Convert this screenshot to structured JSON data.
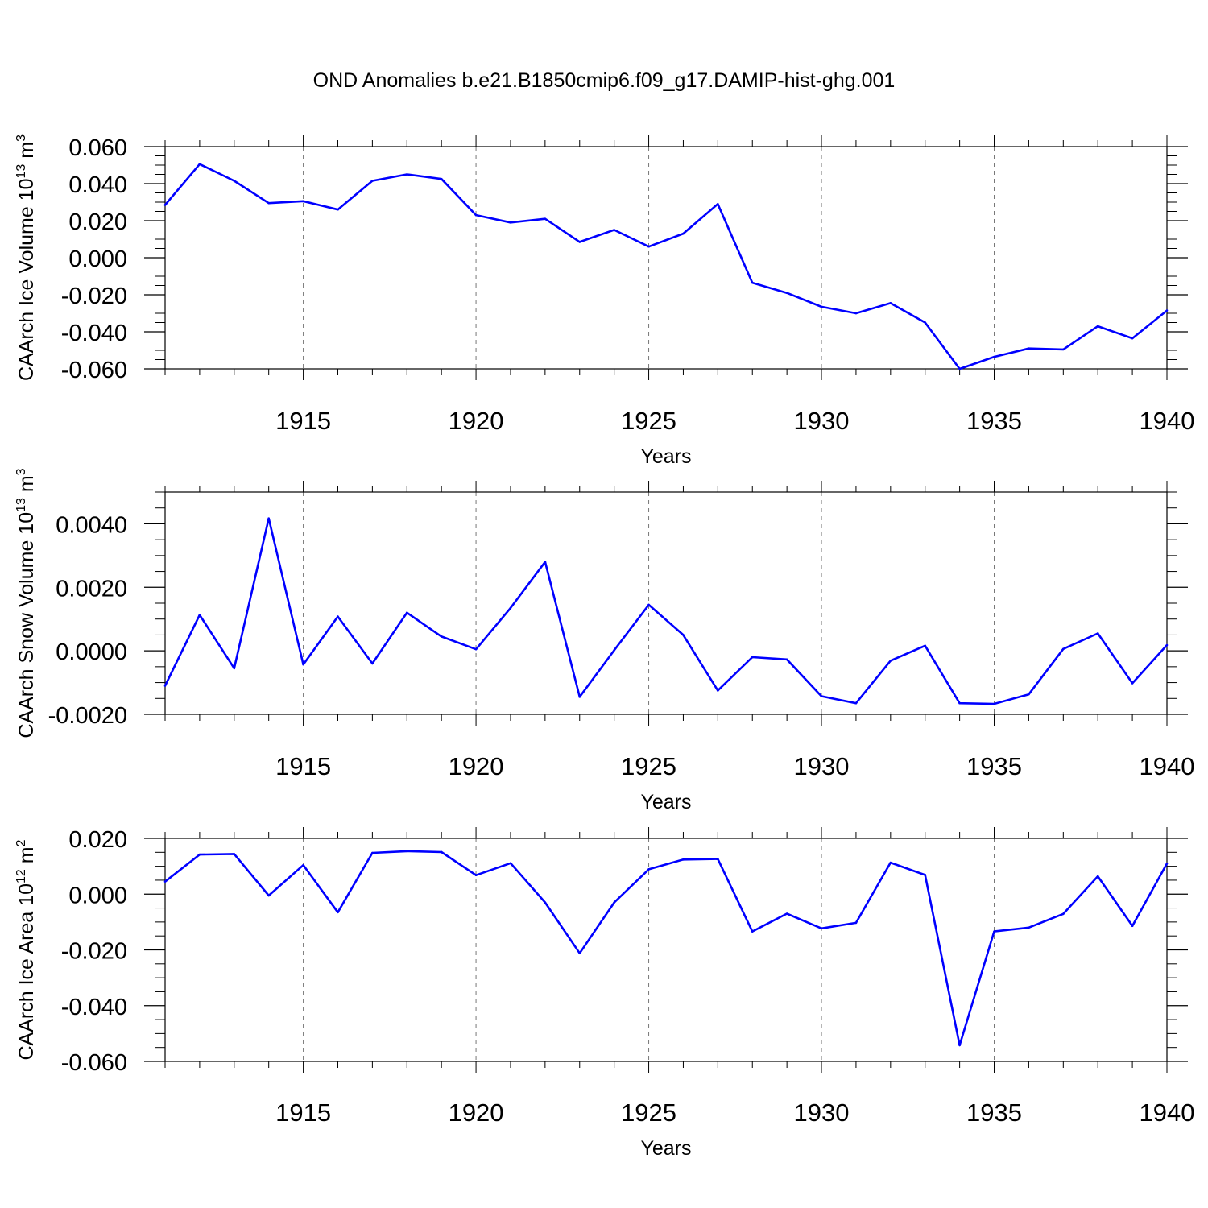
{
  "title": "OND Anomalies b.e21.B1850cmip6.f09_g17.DAMIP-hist-ghg.001",
  "colors": {
    "series": "#0000ff",
    "axis": "#000000",
    "grid": "#777777"
  },
  "chart_data": [
    {
      "type": "line",
      "title": "OND Anomalies b.e21.B1850cmip6.f09_g17.DAMIP-hist-ghg.001",
      "ylabel": "CAArch Ice Volume 10^13 m^3",
      "ylabel_main": "CAArch Ice Volume 10",
      "ylabel_exp": "13",
      "ylabel_unit": "m",
      "ylabel_unit_exp": "3",
      "xlabel": "Years",
      "xlim": [
        1911,
        1940
      ],
      "ylim": [
        -0.06,
        0.06
      ],
      "yticks": [
        -0.06,
        -0.04,
        -0.02,
        0.0,
        0.02,
        0.04,
        0.06
      ],
      "ytick_labels": [
        "-0.060",
        "-0.040",
        "-0.020",
        "0.000",
        "0.020",
        "0.040",
        "0.060"
      ],
      "yminor_step": 0.005,
      "xticks": [
        1915,
        1920,
        1925,
        1930,
        1935,
        1940
      ],
      "xtick_labels": [
        "1915",
        "1920",
        "1925",
        "1930",
        "1935",
        "1940"
      ],
      "grid": "dashed vertical at major x ticks",
      "x": [
        1911,
        1912,
        1913,
        1914,
        1915,
        1916,
        1917,
        1918,
        1919,
        1920,
        1921,
        1922,
        1923,
        1924,
        1925,
        1926,
        1927,
        1928,
        1929,
        1930,
        1931,
        1932,
        1933,
        1934,
        1935,
        1936,
        1937,
        1938,
        1939,
        1940
      ],
      "values": [
        0.0285,
        0.0505,
        0.0415,
        0.0295,
        0.0305,
        0.026,
        0.0415,
        0.045,
        0.0425,
        0.023,
        0.019,
        0.021,
        0.0085,
        0.015,
        0.006,
        0.013,
        0.029,
        -0.0135,
        -0.019,
        -0.0265,
        -0.03,
        -0.0245,
        -0.035,
        -0.06,
        -0.0535,
        -0.049,
        -0.0495,
        -0.037,
        -0.0435,
        -0.0285
      ]
    },
    {
      "type": "line",
      "ylabel": "CAArch Snow Volume 10^13 m^3",
      "ylabel_main": "CAArch Snow Volume 10",
      "ylabel_exp": "13",
      "ylabel_unit": "m",
      "ylabel_unit_exp": "3",
      "xlabel": "Years",
      "xlim": [
        1911,
        1940
      ],
      "ylim": [
        -0.002,
        0.005
      ],
      "yticks": [
        -0.002,
        0.0,
        0.002,
        0.004
      ],
      "ytick_labels": [
        "-0.0020",
        "0.0000",
        "0.0020",
        "0.0040"
      ],
      "yminor_step": 0.0005,
      "xticks": [
        1915,
        1920,
        1925,
        1930,
        1935,
        1940
      ],
      "xtick_labels": [
        "1915",
        "1920",
        "1925",
        "1930",
        "1935",
        "1940"
      ],
      "grid": "dashed vertical at major x ticks",
      "x": [
        1911,
        1912,
        1913,
        1914,
        1915,
        1916,
        1917,
        1918,
        1919,
        1920,
        1921,
        1922,
        1923,
        1924,
        1925,
        1926,
        1927,
        1928,
        1929,
        1930,
        1931,
        1932,
        1933,
        1934,
        1935,
        1936,
        1937,
        1938,
        1939,
        1940
      ],
      "values": [
        -0.0011,
        0.00113,
        -0.00055,
        0.00417,
        -0.00043,
        0.00108,
        -0.0004,
        0.0012,
        0.00045,
        5e-05,
        0.00135,
        0.0028,
        -0.00145,
        2e-05,
        0.00145,
        0.0005,
        -0.00125,
        -0.0002,
        -0.00027,
        -0.00143,
        -0.00165,
        -0.00031,
        0.00016,
        -0.00165,
        -0.00167,
        -0.00137,
        6e-05,
        0.00055,
        -0.00102,
        0.00018
      ]
    },
    {
      "type": "line",
      "ylabel": "CAArch Ice Area 10^12 m^2",
      "ylabel_main": "CAArch Ice Area 10",
      "ylabel_exp": "12",
      "ylabel_unit": "m",
      "ylabel_unit_exp": "2",
      "xlabel": "Years",
      "xlim": [
        1911,
        1940
      ],
      "ylim": [
        -0.06,
        0.02
      ],
      "yticks": [
        -0.06,
        -0.04,
        -0.02,
        0.0,
        0.02
      ],
      "ytick_labels": [
        "-0.060",
        "-0.040",
        "-0.020",
        "0.000",
        "0.020"
      ],
      "yminor_step": 0.005,
      "xticks": [
        1915,
        1920,
        1925,
        1930,
        1935,
        1940
      ],
      "xtick_labels": [
        "1915",
        "1920",
        "1925",
        "1930",
        "1935",
        "1940"
      ],
      "grid": "dashed vertical at major x ticks",
      "x": [
        1911,
        1912,
        1913,
        1914,
        1915,
        1916,
        1917,
        1918,
        1919,
        1920,
        1921,
        1922,
        1923,
        1924,
        1925,
        1926,
        1927,
        1928,
        1929,
        1930,
        1931,
        1932,
        1933,
        1934,
        1935,
        1936,
        1937,
        1938,
        1939,
        1940
      ],
      "values": [
        0.0045,
        0.0142,
        0.0144,
        -0.0005,
        0.0104,
        -0.0065,
        0.0148,
        0.0154,
        0.0151,
        0.0068,
        0.0111,
        -0.003,
        -0.0212,
        -0.003,
        0.0089,
        0.0124,
        0.0126,
        -0.0134,
        -0.007,
        -0.0123,
        -0.0103,
        0.0113,
        0.0069,
        -0.0542,
        -0.0134,
        -0.012,
        -0.0071,
        0.0064,
        -0.0114,
        0.011
      ]
    }
  ]
}
